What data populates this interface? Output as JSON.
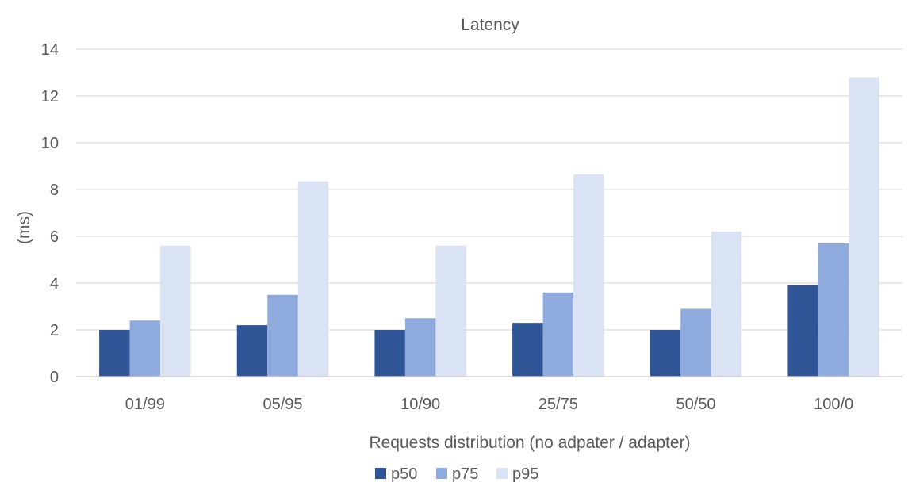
{
  "chart_data": {
    "type": "bar",
    "title": "Latency",
    "xlabel": "Requests distribution (no adpater / adapter)",
    "ylabel": "(ms)",
    "categories": [
      "01/99",
      "05/95",
      "10/90",
      "25/75",
      "50/50",
      "100/0"
    ],
    "series": [
      {
        "name": "p50",
        "color": "#2f5597",
        "values": [
          2.0,
          2.2,
          2.0,
          2.3,
          2.0,
          3.9
        ]
      },
      {
        "name": "p75",
        "color": "#8faadc",
        "values": [
          2.4,
          3.5,
          2.5,
          3.6,
          2.9,
          5.7
        ]
      },
      {
        "name": "p95",
        "color": "#dae3f3",
        "values": [
          5.6,
          8.35,
          5.6,
          8.65,
          6.2,
          12.8
        ]
      }
    ],
    "ylim": [
      0,
      14
    ],
    "yticks": [
      "0",
      "2",
      "4",
      "6",
      "8",
      "10",
      "12",
      "14"
    ],
    "grid": true,
    "legend_position": "bottom"
  }
}
